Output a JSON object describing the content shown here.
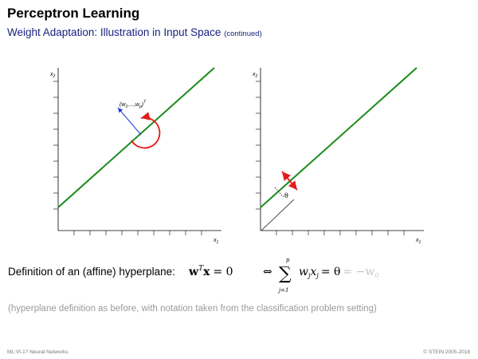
{
  "slide": {
    "title": "Perceptron Learning",
    "subtitle": "Weight Adaptation: Illustration in Input Space",
    "subtitle_note": "(continued)"
  },
  "left_plot": {
    "y_axis_label": "x",
    "y_axis_sub": "2",
    "x_axis_label": "x",
    "x_axis_sub": "1",
    "weight_vector_label": "(w",
    "weight_vector_sub1": "1",
    "weight_vector_mid": ",...,w",
    "weight_vector_sub2": "p",
    "weight_vector_end": ")",
    "weight_vector_sup": "T",
    "colors": {
      "hyperplane": "#1a8c1a",
      "normal_vector": "#1f3fd4",
      "rotation": "#e31b1b"
    }
  },
  "right_plot": {
    "y_axis_label": "x",
    "y_axis_sub": "2",
    "x_axis_label": "x",
    "x_axis_sub": "1",
    "theta_label": "θ",
    "colors": {
      "hyperplane": "#1a8c1a",
      "shift_arrow": "#e31b1b"
    }
  },
  "definition": {
    "text": "Definition of an (affine) hyperplane:",
    "lhs_w": "w",
    "lhs_T": "T",
    "lhs_x": "x",
    "lhs_eq": "= 0",
    "iff": "⇔",
    "sum": "∑",
    "sum_upper": "p",
    "sum_lower": "j=1",
    "term": "w",
    "term_sub": "j",
    "term_x": "x",
    "term_x_sub": "j",
    "eq_theta": "= θ",
    "grey_part": "= −w",
    "grey_sub": "0"
  },
  "note": "(hyperplane definition as before, with notation taken from the classification problem setting)",
  "footer": {
    "left": "ML:VI-1?   Neural Networks",
    "right": "© STEIN 2005-2018"
  }
}
